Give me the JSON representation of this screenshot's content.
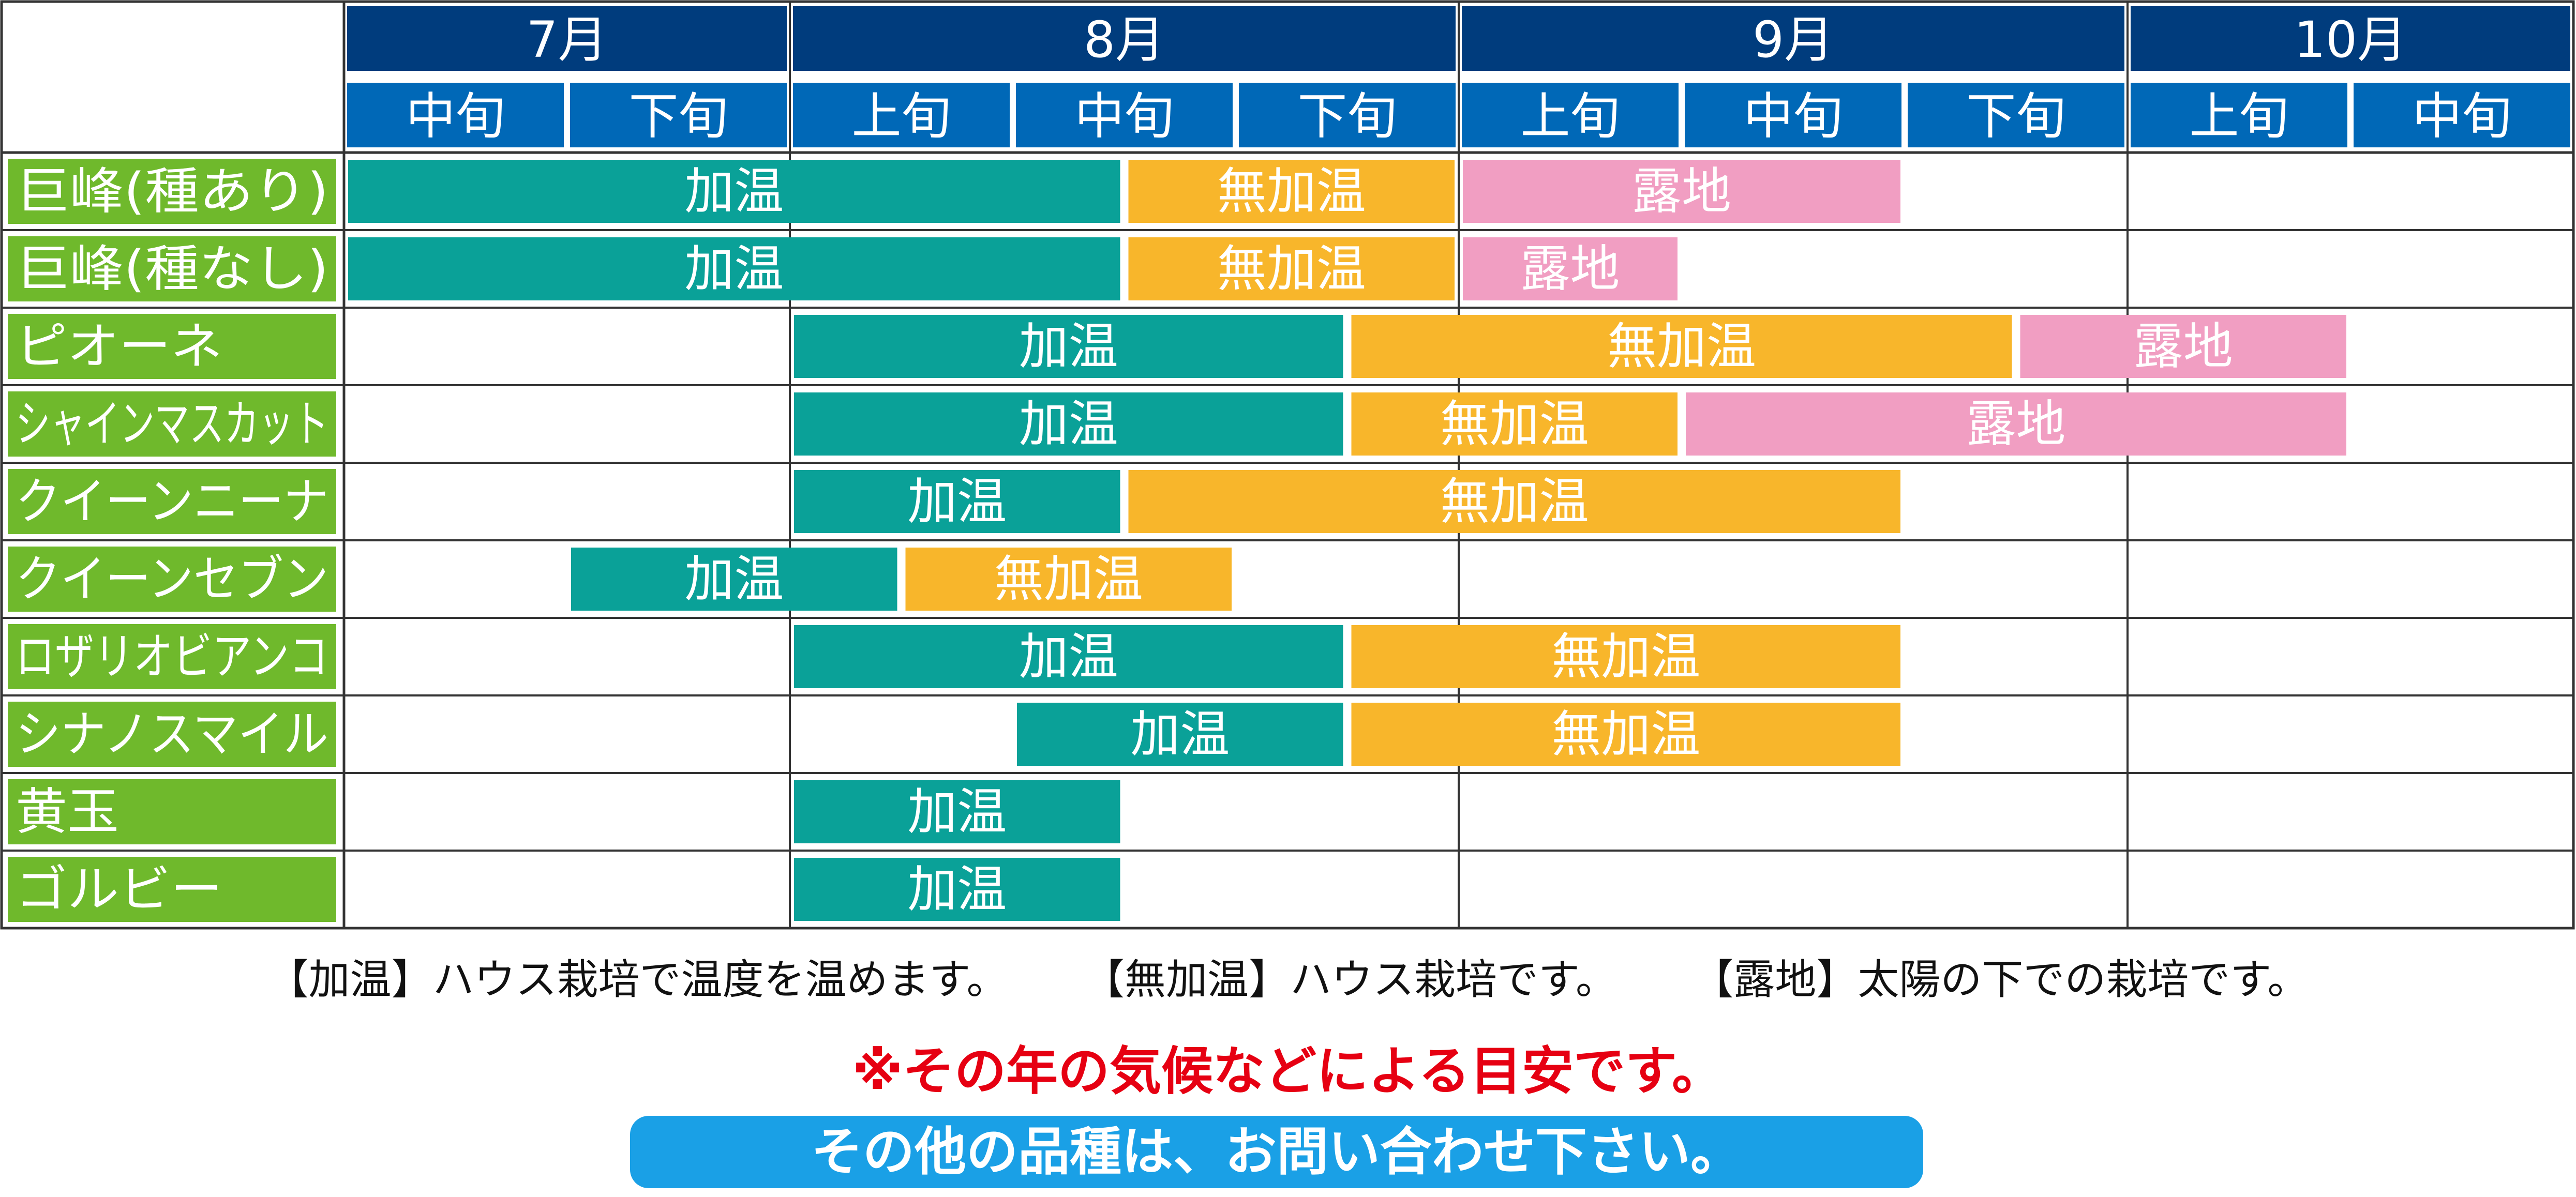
{
  "chart_data": {
    "type": "table",
    "months": [
      {
        "label": "7月",
        "decades": [
          "中旬",
          "下旬"
        ]
      },
      {
        "label": "8月",
        "decades": [
          "上旬",
          "中旬",
          "下旬"
        ]
      },
      {
        "label": "9月",
        "decades": [
          "上旬",
          "中旬",
          "下旬"
        ]
      },
      {
        "label": "10月",
        "decades": [
          "上旬",
          "中旬"
        ]
      }
    ],
    "series": [
      {
        "key": "kaon",
        "name": "加温",
        "color": "#0aa198"
      },
      {
        "key": "mukaon",
        "name": "無加温",
        "color": "#f8b62b"
      },
      {
        "key": "roji",
        "name": "露地",
        "color": "#f19ec2"
      }
    ],
    "rows": [
      {
        "name": "巨峰(種あり)",
        "periods": [
          {
            "series": "kaon",
            "start": 0.0,
            "end": 3.5
          },
          {
            "series": "mukaon",
            "start": 3.5,
            "end": 5.0
          },
          {
            "series": "roji",
            "start": 5.0,
            "end": 7.0
          }
        ]
      },
      {
        "name": "巨峰(種なし)",
        "periods": [
          {
            "series": "kaon",
            "start": 0.0,
            "end": 3.5
          },
          {
            "series": "mukaon",
            "start": 3.5,
            "end": 5.0
          },
          {
            "series": "roji",
            "start": 5.0,
            "end": 6.0
          }
        ]
      },
      {
        "name": "ピオーネ",
        "periods": [
          {
            "series": "kaon",
            "start": 2.0,
            "end": 4.5
          },
          {
            "series": "mukaon",
            "start": 4.5,
            "end": 7.5
          },
          {
            "series": "roji",
            "start": 7.5,
            "end": 9.0
          }
        ]
      },
      {
        "name": "シャインマスカット",
        "periods": [
          {
            "series": "kaon",
            "start": 2.0,
            "end": 4.5
          },
          {
            "series": "mukaon",
            "start": 4.5,
            "end": 6.0
          },
          {
            "series": "roji",
            "start": 6.0,
            "end": 9.0
          }
        ]
      },
      {
        "name": "クイーンニーナ",
        "periods": [
          {
            "series": "kaon",
            "start": 2.0,
            "end": 3.5
          },
          {
            "series": "mukaon",
            "start": 3.5,
            "end": 7.0
          }
        ]
      },
      {
        "name": "クイーンセブン",
        "periods": [
          {
            "series": "kaon",
            "start": 1.0,
            "end": 2.5
          },
          {
            "series": "mukaon",
            "start": 2.5,
            "end": 4.0
          }
        ]
      },
      {
        "name": "ロザリオビアンコ",
        "periods": [
          {
            "series": "kaon",
            "start": 2.0,
            "end": 4.5
          },
          {
            "series": "mukaon",
            "start": 4.5,
            "end": 7.0
          }
        ]
      },
      {
        "name": "シナノスマイル",
        "periods": [
          {
            "series": "kaon",
            "start": 3.0,
            "end": 4.5
          },
          {
            "series": "mukaon",
            "start": 4.5,
            "end": 7.0
          }
        ]
      },
      {
        "name": "黄玉",
        "periods": [
          {
            "series": "kaon",
            "start": 2.0,
            "end": 3.5
          }
        ]
      },
      {
        "name": "ゴルビー",
        "periods": [
          {
            "series": "kaon",
            "start": 2.0,
            "end": 3.5
          }
        ]
      }
    ],
    "colors": {
      "month_header": "#003c7d",
      "decade_header": "#0068b7",
      "row_label": "#6fb92c",
      "grid": "#333333"
    }
  },
  "legend": {
    "kaon": "【加温】ハウス栽培で温度を温めます。",
    "mukaon": "【無加温】ハウス栽培です。",
    "roji": "【露地】太陽の下での栽培です。"
  },
  "note": "※その年の気候などによる目安です。",
  "contact": "その他の品種は、お問い合わせ下さい。"
}
